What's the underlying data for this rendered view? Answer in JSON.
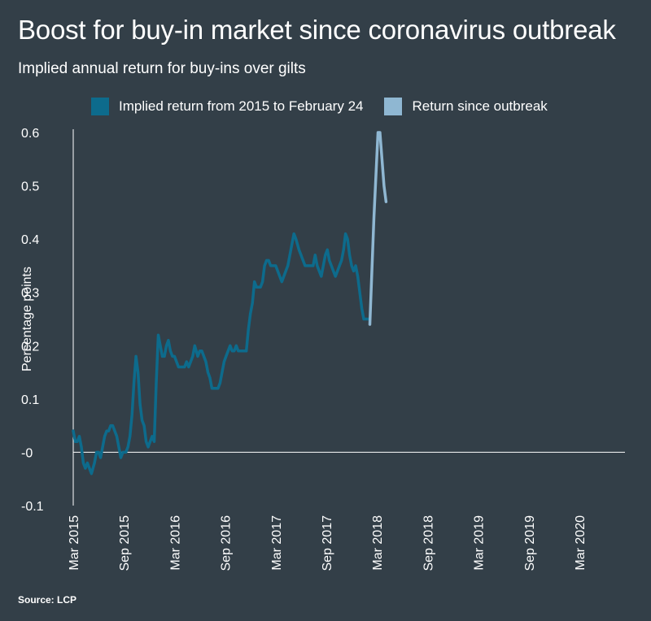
{
  "header": {
    "title": "Boost for buy-in market since coronavirus outbreak",
    "subtitle": "Implied annual return for buy-ins over gilts"
  },
  "footer": {
    "source": "Source: LCP"
  },
  "colors": {
    "background": "#333f48",
    "series_pre": "#0d6b8c",
    "series_post": "#8fb7d2",
    "axis": "#ffffff"
  },
  "chart_data": {
    "type": "line",
    "ylabel": "Percentage points",
    "ylim": [
      -0.1,
      0.6
    ],
    "yticks": [
      {
        "value": 0.6,
        "label": "0.6"
      },
      {
        "value": 0.5,
        "label": "0.5"
      },
      {
        "value": 0.4,
        "label": "0.4"
      },
      {
        "value": 0.3,
        "label": "0.3"
      },
      {
        "value": 0.2,
        "label": "0.2"
      },
      {
        "value": 0.1,
        "label": "0.1"
      },
      {
        "value": 0.0,
        "label": "-0"
      },
      {
        "value": -0.1,
        "label": "-0.1"
      }
    ],
    "xlim": [
      2015.17,
      2020.62
    ],
    "xticks": [
      {
        "value": 2015.17,
        "label": "Mar 2015"
      },
      {
        "value": 2015.67,
        "label": "Sep 2015"
      },
      {
        "value": 2016.17,
        "label": "Mar 2016"
      },
      {
        "value": 2016.67,
        "label": "Sep 2016"
      },
      {
        "value": 2017.17,
        "label": "Mar 2017"
      },
      {
        "value": 2017.67,
        "label": "Sep 2017"
      },
      {
        "value": 2018.17,
        "label": "Mar 2018"
      },
      {
        "value": 2018.67,
        "label": "Sep 2018"
      },
      {
        "value": 2019.17,
        "label": "Mar 2019"
      },
      {
        "value": 2019.67,
        "label": "Sep 2019"
      },
      {
        "value": 2020.17,
        "label": "Mar 2020"
      }
    ],
    "legend_position": "top",
    "series": [
      {
        "name": "Implied return from 2015 to February 24",
        "color": "#0d6b8c",
        "points": [
          [
            2015.17,
            0.04
          ],
          [
            2015.19,
            0.02
          ],
          [
            2015.21,
            0.02
          ],
          [
            2015.23,
            0.03
          ],
          [
            2015.25,
            0.01
          ],
          [
            2015.27,
            -0.02
          ],
          [
            2015.29,
            -0.03
          ],
          [
            2015.31,
            -0.02
          ],
          [
            2015.33,
            -0.03
          ],
          [
            2015.35,
            -0.04
          ],
          [
            2015.38,
            -0.02
          ],
          [
            2015.4,
            0.0
          ],
          [
            2015.42,
            0.0
          ],
          [
            2015.44,
            -0.01
          ],
          [
            2015.46,
            0.01
          ],
          [
            2015.48,
            0.03
          ],
          [
            2015.5,
            0.04
          ],
          [
            2015.52,
            0.04
          ],
          [
            2015.54,
            0.05
          ],
          [
            2015.56,
            0.05
          ],
          [
            2015.58,
            0.04
          ],
          [
            2015.6,
            0.03
          ],
          [
            2015.62,
            0.01
          ],
          [
            2015.64,
            -0.01
          ],
          [
            2015.66,
            0.0
          ],
          [
            2015.69,
            0.0
          ],
          [
            2015.71,
            0.01
          ],
          [
            2015.73,
            0.03
          ],
          [
            2015.75,
            0.07
          ],
          [
            2015.77,
            0.13
          ],
          [
            2015.79,
            0.18
          ],
          [
            2015.81,
            0.15
          ],
          [
            2015.83,
            0.09
          ],
          [
            2015.85,
            0.06
          ],
          [
            2015.87,
            0.05
          ],
          [
            2015.89,
            0.02
          ],
          [
            2015.91,
            0.01
          ],
          [
            2015.93,
            0.02
          ],
          [
            2015.95,
            0.03
          ],
          [
            2015.97,
            0.02
          ],
          [
            2015.99,
            0.13
          ],
          [
            2016.01,
            0.22
          ],
          [
            2016.03,
            0.2
          ],
          [
            2016.05,
            0.18
          ],
          [
            2016.07,
            0.18
          ],
          [
            2016.09,
            0.2
          ],
          [
            2016.11,
            0.21
          ],
          [
            2016.13,
            0.19
          ],
          [
            2016.15,
            0.18
          ],
          [
            2016.17,
            0.18
          ],
          [
            2016.19,
            0.17
          ],
          [
            2016.21,
            0.16
          ],
          [
            2016.23,
            0.16
          ],
          [
            2016.25,
            0.16
          ],
          [
            2016.27,
            0.16
          ],
          [
            2016.29,
            0.17
          ],
          [
            2016.31,
            0.16
          ],
          [
            2016.33,
            0.17
          ],
          [
            2016.35,
            0.18
          ],
          [
            2016.37,
            0.2
          ],
          [
            2016.4,
            0.18
          ],
          [
            2016.42,
            0.19
          ],
          [
            2016.44,
            0.19
          ],
          [
            2016.46,
            0.18
          ],
          [
            2016.48,
            0.17
          ],
          [
            2016.5,
            0.15
          ],
          [
            2016.52,
            0.14
          ],
          [
            2016.54,
            0.12
          ],
          [
            2016.56,
            0.12
          ],
          [
            2016.58,
            0.12
          ],
          [
            2016.6,
            0.12
          ],
          [
            2016.62,
            0.13
          ],
          [
            2016.64,
            0.15
          ],
          [
            2016.66,
            0.17
          ],
          [
            2016.68,
            0.18
          ],
          [
            2016.7,
            0.19
          ],
          [
            2016.72,
            0.2
          ],
          [
            2016.74,
            0.19
          ],
          [
            2016.76,
            0.19
          ],
          [
            2016.78,
            0.2
          ],
          [
            2016.8,
            0.19
          ],
          [
            2016.82,
            0.19
          ],
          [
            2016.84,
            0.19
          ],
          [
            2016.86,
            0.19
          ],
          [
            2016.88,
            0.19
          ],
          [
            2016.9,
            0.23
          ],
          [
            2016.92,
            0.26
          ],
          [
            2016.94,
            0.28
          ],
          [
            2016.96,
            0.32
          ],
          [
            2016.98,
            0.31
          ],
          [
            2017.0,
            0.31
          ],
          [
            2017.02,
            0.31
          ],
          [
            2017.04,
            0.32
          ],
          [
            2017.06,
            0.35
          ],
          [
            2017.08,
            0.36
          ],
          [
            2017.1,
            0.36
          ],
          [
            2017.12,
            0.35
          ],
          [
            2017.15,
            0.35
          ],
          [
            2017.17,
            0.35
          ],
          [
            2017.19,
            0.34
          ],
          [
            2017.21,
            0.33
          ],
          [
            2017.23,
            0.32
          ],
          [
            2017.25,
            0.33
          ],
          [
            2017.27,
            0.34
          ],
          [
            2017.29,
            0.35
          ],
          [
            2017.31,
            0.37
          ],
          [
            2017.33,
            0.39
          ],
          [
            2017.35,
            0.41
          ],
          [
            2017.37,
            0.4
          ],
          [
            2017.4,
            0.38
          ],
          [
            2017.42,
            0.37
          ],
          [
            2017.44,
            0.36
          ],
          [
            2017.46,
            0.35
          ],
          [
            2017.48,
            0.35
          ],
          [
            2017.5,
            0.35
          ],
          [
            2017.52,
            0.35
          ],
          [
            2017.54,
            0.35
          ],
          [
            2017.56,
            0.37
          ],
          [
            2017.58,
            0.35
          ],
          [
            2017.6,
            0.34
          ],
          [
            2017.62,
            0.33
          ],
          [
            2017.64,
            0.35
          ],
          [
            2017.66,
            0.37
          ],
          [
            2017.68,
            0.38
          ],
          [
            2017.7,
            0.36
          ],
          [
            2017.72,
            0.35
          ],
          [
            2017.74,
            0.34
          ],
          [
            2017.76,
            0.33
          ],
          [
            2017.78,
            0.34
          ],
          [
            2017.8,
            0.35
          ],
          [
            2017.82,
            0.36
          ],
          [
            2017.84,
            0.38
          ],
          [
            2017.86,
            0.41
          ],
          [
            2017.88,
            0.4
          ],
          [
            2017.9,
            0.37
          ],
          [
            2017.92,
            0.35
          ],
          [
            2017.94,
            0.34
          ],
          [
            2017.96,
            0.35
          ],
          [
            2017.98,
            0.33
          ],
          [
            2018.0,
            0.3
          ],
          [
            2018.02,
            0.27
          ],
          [
            2018.04,
            0.25
          ],
          [
            2018.06,
            0.25
          ],
          [
            2018.08,
            0.25
          ],
          [
            2018.1,
            0.25
          ]
        ]
      },
      {
        "name": "Return since outbreak",
        "color": "#8fb7d2",
        "points": [
          [
            2018.1,
            0.24
          ],
          [
            2018.14,
            0.44
          ],
          [
            2018.18,
            0.6
          ],
          [
            2018.2,
            0.6
          ],
          [
            2018.22,
            0.55
          ],
          [
            2018.24,
            0.5
          ],
          [
            2018.26,
            0.47
          ]
        ]
      }
    ]
  }
}
